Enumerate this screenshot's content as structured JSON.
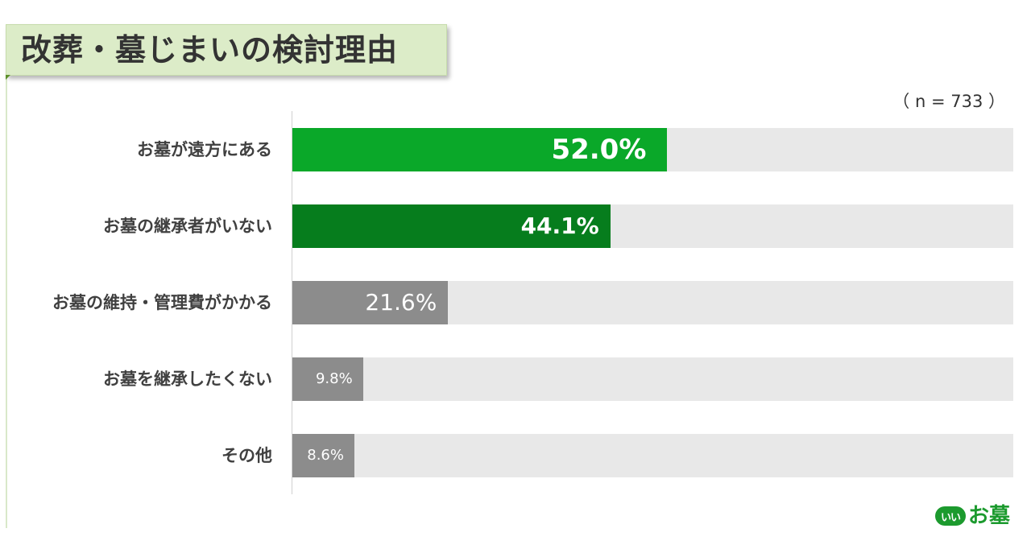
{
  "title": "改葬・墓じまいの検討理由",
  "sample_note": "（ n = 733 ）",
  "logo": {
    "badge": "いい",
    "text": "お墓"
  },
  "colors": {
    "highlight_primary": "#0aa829",
    "highlight_secondary": "#067d1d",
    "neutral_bar": "#8c8c8c",
    "track": "#e8e8e8",
    "title_background": "#dcecc8"
  },
  "chart_data": {
    "type": "bar",
    "orientation": "horizontal",
    "title": "改葬・墓じまいの検討理由",
    "categories": [
      "お墓が遠方にある",
      "お墓の継承者がいない",
      "お墓の維持・管理費がかかる",
      "お墓を継承したくない",
      "その他"
    ],
    "values": [
      52.0,
      44.1,
      21.6,
      9.8,
      8.6
    ],
    "value_labels": [
      "52.0%",
      "44.1%",
      "21.6%",
      "9.8%",
      "8.6%"
    ],
    "unit": "%",
    "xlim": [
      0,
      100
    ],
    "grid": false,
    "legend": "none",
    "bar_colors": [
      "#0aa829",
      "#067d1d",
      "#8c8c8c",
      "#8c8c8c",
      "#8c8c8c"
    ]
  }
}
